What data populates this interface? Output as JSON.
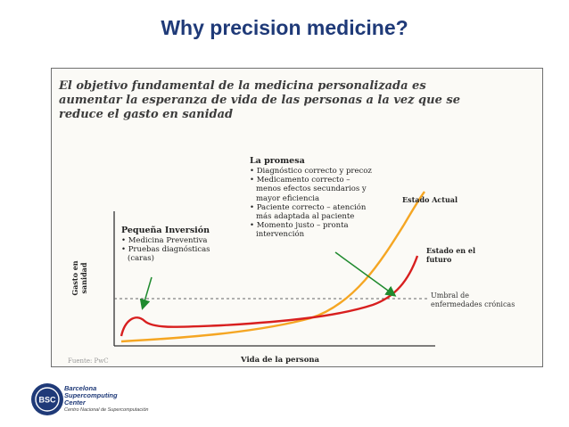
{
  "slide": {
    "title": "Why precision medicine?"
  },
  "figure": {
    "title_lines": [
      "El objetivo fundamental de la medicina personalizada es",
      "aumentar la esperanza de vida de las personas a la vez que se",
      "reduce el gasto en sanidad"
    ],
    "promise": {
      "title": "La promesa",
      "items": [
        "• Diagnóstico correcto y precoz",
        "• Medicamento correcto –",
        "menos efectos secundarios y",
        "mayor eficiencia",
        "• Paciente correcto – atención",
        "más adaptada al paciente",
        "• Momento justo – pronta",
        "intervención"
      ]
    },
    "investment": {
      "title": "Pequeña Inversión",
      "items": [
        "• Medicina Preventiva",
        "• Pruebas diagnósticas",
        "(caras)"
      ]
    },
    "current_state": "Estado Actual",
    "future_state": [
      "Estado en el",
      "futuro"
    ],
    "threshold": [
      "Umbral de",
      "enfermedades crónicas"
    ],
    "y_axis_label": "Gasto en sanidad",
    "x_axis_label": "Vida de la persona",
    "source": "Fuente: PwC",
    "colors": {
      "current_curve": "#f5a623",
      "future_curve": "#d81f1f",
      "arrow": "#1f8a2e",
      "threshold": "#666666"
    }
  },
  "logo": {
    "badge": "BSC",
    "lines": [
      "Barcelona",
      "Supercomputing",
      "Center"
    ],
    "subtitle": "Centro Nacional de Supercomputación"
  }
}
